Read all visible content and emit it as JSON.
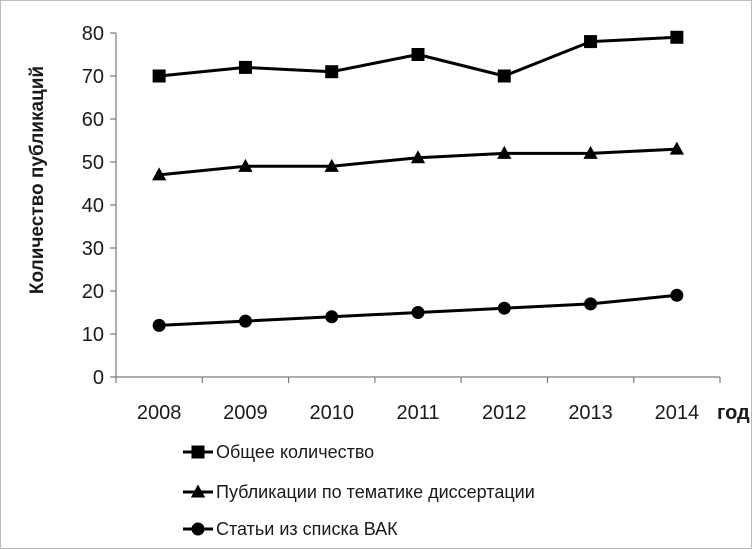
{
  "chart_data": {
    "type": "line",
    "categories": [
      "2008",
      "2009",
      "2010",
      "2011",
      "2012",
      "2013",
      "2014"
    ],
    "series": [
      {
        "name": "Общее количество",
        "marker": "square",
        "values": [
          70,
          72,
          71,
          75,
          70,
          78,
          79
        ]
      },
      {
        "name": "Публикации по тематике диссертации",
        "marker": "triangle",
        "values": [
          47,
          49,
          49,
          51,
          52,
          52,
          53
        ]
      },
      {
        "name": "Статьи из списка ВАК",
        "marker": "circle",
        "values": [
          12,
          13,
          14,
          15,
          16,
          17,
          19
        ]
      }
    ],
    "ylabel": "Количество публикаций",
    "xlabel": "год",
    "ylim": [
      0,
      80
    ],
    "yticks": [
      0,
      10,
      20,
      30,
      40,
      50,
      60,
      70,
      80
    ],
    "grid": false,
    "legend_position": "bottom",
    "line_color": "#000000"
  }
}
